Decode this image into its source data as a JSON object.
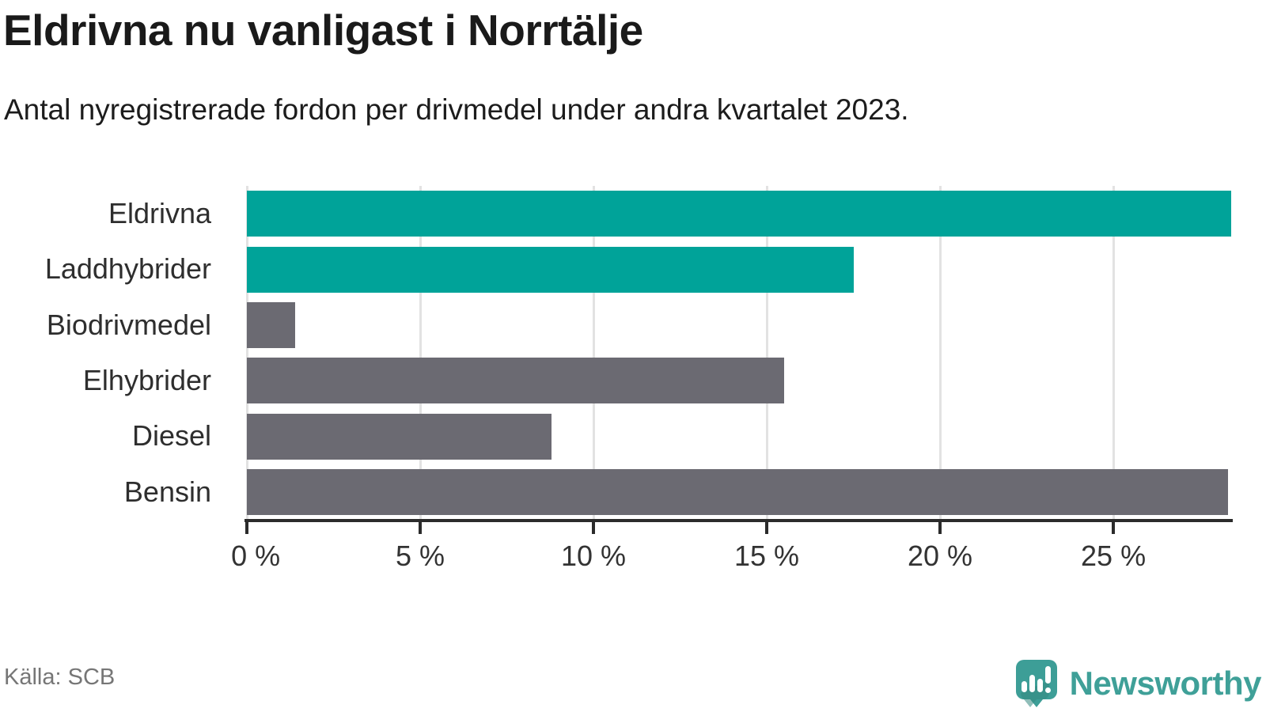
{
  "header": {
    "title": "Eldrivna nu vanligast i Norrtälje",
    "subtitle": "Antal nyregistrerade fordon per drivmedel under andra kvartalet 2023."
  },
  "chart_data": {
    "type": "bar",
    "orientation": "horizontal",
    "title": "Eldrivna nu vanligast i Norrtälje",
    "subtitle": "Antal nyregistrerade fordon per drivmedel under andra kvartalet 2023.",
    "categories": [
      "Eldrivna",
      "Laddhybrider",
      "Biodrivmedel",
      "Elhybrider",
      "Diesel",
      "Bensin"
    ],
    "values": [
      28.4,
      17.5,
      1.4,
      15.5,
      8.8,
      28.3
    ],
    "unit": "%",
    "bar_color_keys": [
      "teal",
      "teal",
      "gray",
      "gray",
      "gray",
      "gray"
    ],
    "xlim": [
      0,
      28.4
    ],
    "x_ticks": [
      {
        "value": 0,
        "label": "0 %"
      },
      {
        "value": 5,
        "label": "5 %"
      },
      {
        "value": 10,
        "label": "10 %"
      },
      {
        "value": 15,
        "label": "15 %"
      },
      {
        "value": 20,
        "label": "20 %"
      },
      {
        "value": 25,
        "label": "25 %"
      }
    ],
    "grid": "vertical",
    "legend": "none",
    "colors": {
      "teal": "#00a399",
      "gray": "#6b6a72",
      "grid": "#e2e2e2",
      "axis": "#2b2b2b"
    }
  },
  "footer": {
    "source": "Källa: SCB",
    "logo_text": "Newsworthy",
    "logo_color": "#3fa098"
  }
}
